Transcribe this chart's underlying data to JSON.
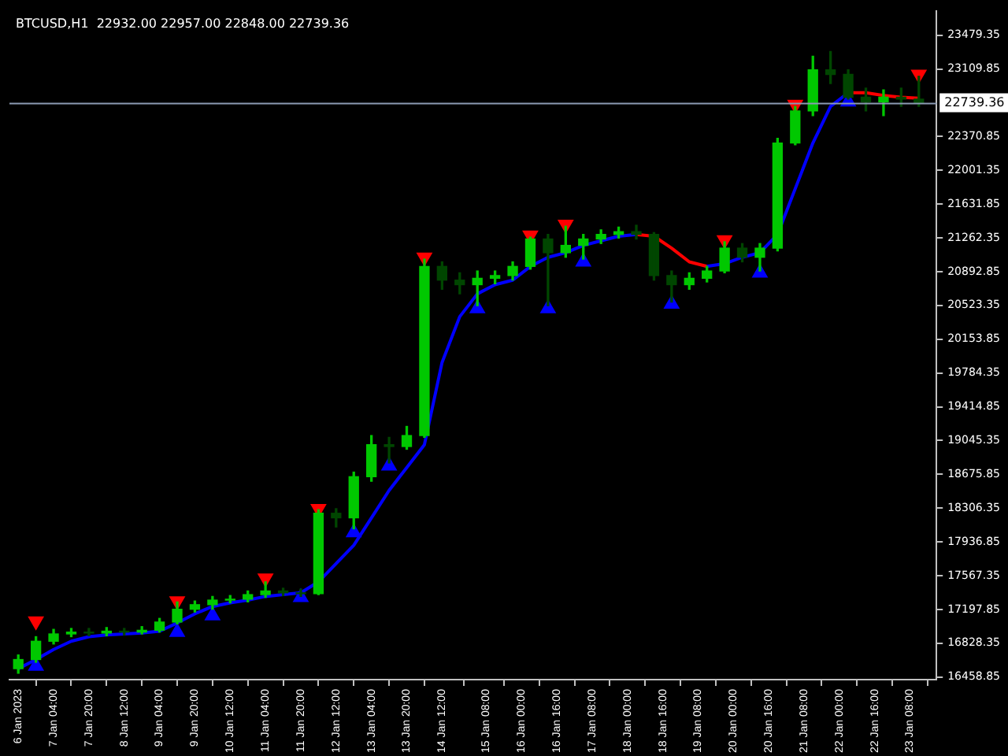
{
  "chart_data": {
    "type": "candlestick",
    "title": "BTCUSD,H1  22932.00 22957.00 22848.00 22739.36",
    "colors": [
      "#00c800",
      "#00c800",
      "#00c800",
      "#00c800",
      "#004600",
      "#00c800",
      "#004600",
      "#00c800",
      "#00c800",
      "#00c800",
      "#00c800",
      "#00c800",
      "#00c800",
      "#00c800",
      "#00c800",
      "#004600",
      "#004600",
      "#00c800",
      "#004600",
      "#00c800",
      "#00c800",
      "#004600",
      "#00c800",
      "#00c800",
      "#004600",
      "#004600",
      "#00c800",
      "#00c800",
      "#00c800",
      "#00c800",
      "#004600",
      "#00c800",
      "#00c800",
      "#00c800",
      "#00c800",
      "#004600",
      "#004600",
      "#004600",
      "#00c800",
      "#00c800",
      "#00c800",
      "#004600",
      "#00c800",
      "#00c800",
      "#00c800",
      "#00c800",
      "#004600",
      "#004600",
      "#004600",
      "#00c800",
      "#004600",
      "#004600"
    ],
    "x": [
      "2023-01-06T12:00",
      "2023-01-06T20:00",
      "2023-01-07T04:00",
      "2023-01-07T12:00",
      "2023-01-07T20:00",
      "2023-01-08T04:00",
      "2023-01-08T12:00",
      "2023-01-08T20:00",
      "2023-01-09T04:00",
      "2023-01-09T12:00",
      "2023-01-09T20:00",
      "2023-01-10T04:00",
      "2023-01-10T12:00",
      "2023-01-10T20:00",
      "2023-01-11T04:00",
      "2023-01-11T12:00",
      "2023-01-11T20:00",
      "2023-01-12T04:00",
      "2023-01-12T12:00",
      "2023-01-12T20:00",
      "2023-01-13T04:00",
      "2023-01-13T12:00",
      "2023-01-13T20:00",
      "2023-01-14T04:00",
      "2023-01-14T12:00",
      "2023-01-14T20:00",
      "2023-01-15T04:00",
      "2023-01-15T12:00",
      "2023-01-15T20:00",
      "2023-01-16T04:00",
      "2023-01-16T12:00",
      "2023-01-16T20:00",
      "2023-01-17T04:00",
      "2023-01-17T12:00",
      "2023-01-17T20:00",
      "2023-01-18T04:00",
      "2023-01-18T12:00",
      "2023-01-18T20:00",
      "2023-01-19T04:00",
      "2023-01-19T12:00",
      "2023-01-19T20:00",
      "2023-01-20T04:00",
      "2023-01-20T12:00",
      "2023-01-20T20:00",
      "2023-01-21T04:00",
      "2023-01-21T12:00",
      "2023-01-21T20:00",
      "2023-01-22T04:00",
      "2023-01-22T12:00",
      "2023-01-22T20:00",
      "2023-01-23T04:00",
      "2023-01-23T12:00"
    ],
    "ohlc": [
      [
        16550,
        16700,
        16500,
        16650
      ],
      [
        16650,
        16900,
        16620,
        16850
      ],
      [
        16850,
        16980,
        16820,
        16930
      ],
      [
        16930,
        16990,
        16900,
        16950
      ],
      [
        16950,
        16990,
        16910,
        16940
      ],
      [
        16940,
        17000,
        16910,
        16960
      ],
      [
        16960,
        16990,
        16920,
        16950
      ],
      [
        16950,
        17010,
        16930,
        16970
      ],
      [
        16970,
        17100,
        16950,
        17060
      ],
      [
        17060,
        17280,
        17040,
        17200
      ],
      [
        17200,
        17290,
        17170,
        17250
      ],
      [
        17250,
        17340,
        17200,
        17300
      ],
      [
        17300,
        17350,
        17270,
        17310
      ],
      [
        17310,
        17400,
        17280,
        17360
      ],
      [
        17360,
        17500,
        17330,
        17400
      ],
      [
        17400,
        17430,
        17350,
        17380
      ],
      [
        17380,
        17420,
        17340,
        17370
      ],
      [
        17370,
        18290,
        17360,
        18250
      ],
      [
        18250,
        18300,
        18100,
        18200
      ],
      [
        18200,
        18700,
        18080,
        18650
      ],
      [
        18650,
        19100,
        18600,
        19000
      ],
      [
        19000,
        19080,
        18800,
        18980
      ],
      [
        18980,
        19200,
        18950,
        19100
      ],
      [
        19100,
        21030,
        19080,
        20950
      ],
      [
        20950,
        21000,
        20700,
        20800
      ],
      [
        20800,
        20880,
        20650,
        20750
      ],
      [
        20750,
        20900,
        20520,
        20820
      ],
      [
        20820,
        20900,
        20760,
        20850
      ],
      [
        20850,
        21000,
        20800,
        20950
      ],
      [
        20950,
        21270,
        20920,
        21250
      ],
      [
        21250,
        21300,
        20520,
        21100
      ],
      [
        21100,
        21390,
        21050,
        21180
      ],
      [
        21180,
        21300,
        21030,
        21250
      ],
      [
        21250,
        21350,
        21200,
        21300
      ],
      [
        21300,
        21380,
        21260,
        21330
      ],
      [
        21330,
        21400,
        21250,
        21300
      ],
      [
        21300,
        21320,
        20800,
        20850
      ],
      [
        20850,
        20900,
        20560,
        20750
      ],
      [
        20750,
        20880,
        20700,
        20820
      ],
      [
        20820,
        20950,
        20780,
        20900
      ],
      [
        20900,
        21220,
        20880,
        21150
      ],
      [
        21150,
        21200,
        21000,
        21050
      ],
      [
        21050,
        21200,
        20900,
        21150
      ],
      [
        21150,
        22350,
        21120,
        22300
      ],
      [
        22300,
        22700,
        22280,
        22650
      ],
      [
        22650,
        23250,
        22600,
        23100
      ],
      [
        23100,
        23300,
        22950,
        23050
      ],
      [
        23050,
        23100,
        22780,
        22800
      ],
      [
        22800,
        22900,
        22650,
        22750
      ],
      [
        22750,
        22880,
        22600,
        22800
      ],
      [
        22800,
        22900,
        22700,
        22780
      ],
      [
        22780,
        23030,
        22700,
        22740
      ]
    ],
    "series": [
      {
        "type": "line",
        "color": "#0000ff",
        "values": [
          16550,
          16650,
          16760,
          16850,
          16900,
          16920,
          16930,
          16940,
          16960,
          17050,
          17150,
          17230,
          17270,
          17300,
          17340,
          17360,
          17380,
          17500,
          17700,
          17900,
          18200,
          18500,
          18750,
          19000,
          19900,
          20400,
          20650,
          20750,
          20800,
          20950,
          21050,
          21100,
          21180,
          21230,
          21280,
          21300,
          null,
          null,
          null,
          20950,
          20980,
          21050,
          21100,
          21300,
          21800,
          22300,
          22700,
          22850,
          null,
          null,
          null,
          null
        ]
      },
      {
        "type": "line",
        "color": "#ff0000",
        "values": [
          null,
          null,
          null,
          null,
          null,
          null,
          null,
          null,
          null,
          null,
          null,
          null,
          null,
          null,
          null,
          null,
          null,
          null,
          null,
          null,
          null,
          null,
          null,
          null,
          null,
          null,
          null,
          null,
          null,
          null,
          null,
          null,
          null,
          null,
          null,
          21300,
          21280,
          21150,
          21000,
          20950,
          null,
          null,
          null,
          null,
          null,
          null,
          null,
          22850,
          22850,
          22820,
          22800,
          22790
        ]
      },
      {
        "type": "scatter",
        "color": "#0000ff",
        "marker": "triangle",
        "x": [
          "2023-01-06T20:00",
          "2023-01-09T12:00",
          "2023-01-10T04:00",
          "2023-01-11T20:00",
          "2023-01-12T20:00",
          "2023-01-13T12:00",
          "2023-01-15T04:00",
          "2023-01-16T12:00",
          "2023-01-17T04:00",
          "2023-01-18T20:00",
          "2023-01-20T12:00",
          "2023-01-22T04:00"
        ],
        "values": [
          16580,
          16950,
          17130,
          17330,
          18040,
          18770,
          20490,
          20490,
          21000,
          20540,
          20880,
          22750
        ]
      },
      {
        "type": "scatter",
        "color": "#ff0000",
        "marker": "triangle",
        "x": [
          "2023-01-06T20:00",
          "2023-01-09T12:00",
          "2023-01-11T04:00",
          "2023-01-12T04:00",
          "2023-01-14T04:00",
          "2023-01-16T04:00",
          "2023-01-16T20:00",
          "2023-01-19T20:00",
          "2023-01-21T04:00",
          "2023-01-23T12:00"
        ],
        "values": [
          17070,
          17290,
          17540,
          18300,
          21050,
          21290,
          21410,
          21240,
          22720,
          23050
        ]
      }
    ],
    "xlim": [
      "2023-01-06T08:00",
      "2023-01-23T20:00"
    ],
    "xticks": [
      {
        "value": "2023-01-06T12:00",
        "label": "6 Jan 2023"
      },
      {
        "value": "2023-01-07T04:00",
        "label": "7 Jan 04:00"
      },
      {
        "value": "2023-01-07T20:00",
        "label": "7 Jan 20:00"
      },
      {
        "value": "2023-01-08T12:00",
        "label": "8 Jan 12:00"
      },
      {
        "value": "2023-01-09T04:00",
        "label": "9 Jan 04:00"
      },
      {
        "value": "2023-01-09T20:00",
        "label": "9 Jan 20:00"
      },
      {
        "value": "2023-01-10T12:00",
        "label": "10 Jan 12:00"
      },
      {
        "value": "2023-01-11T04:00",
        "label": "11 Jan 04:00"
      },
      {
        "value": "2023-01-11T20:00",
        "label": "11 Jan 20:00"
      },
      {
        "value": "2023-01-12T12:00",
        "label": "12 Jan 12:00"
      },
      {
        "value": "2023-01-13T04:00",
        "label": "13 Jan 04:00"
      },
      {
        "value": "2023-01-13T20:00",
        "label": "13 Jan 20:00"
      },
      {
        "value": "2023-01-14T12:00",
        "label": "14 Jan 12:00"
      },
      {
        "value": "2023-01-15T08:00",
        "label": "15 Jan 08:00"
      },
      {
        "value": "2023-01-16T00:00",
        "label": "16 Jan 00:00"
      },
      {
        "value": "2023-01-16T16:00",
        "label": "16 Jan 16:00"
      },
      {
        "value": "2023-01-17T08:00",
        "label": "17 Jan 08:00"
      },
      {
        "value": "2023-01-18T00:00",
        "label": "18 Jan 00:00"
      },
      {
        "value": "2023-01-18T16:00",
        "label": "18 Jan 16:00"
      },
      {
        "value": "2023-01-19T08:00",
        "label": "19 Jan 08:00"
      },
      {
        "value": "2023-01-20T00:00",
        "label": "20 Jan 00:00"
      },
      {
        "value": "2023-01-20T16:00",
        "label": "20 Jan 16:00"
      },
      {
        "value": "2023-01-21T08:00",
        "label": "21 Jan 08:00"
      },
      {
        "value": "2023-01-22T00:00",
        "label": "22 Jan 00:00"
      },
      {
        "value": "2023-01-22T16:00",
        "label": "22 Jan 16:00"
      },
      {
        "value": "2023-01-23T08:00",
        "label": "23 Jan 08:00"
      }
    ],
    "ylim": [
      16430,
      23740
    ],
    "yticks": [
      16458.85,
      16828.35,
      17197.85,
      17567.35,
      17936.85,
      18306.35,
      18675.85,
      19045.35,
      19414.85,
      19784.35,
      20153.85,
      20523.35,
      20892.85,
      21262.35,
      21631.85,
      22001.35,
      22370.85,
      23109.85,
      23479.35
    ],
    "ref_lines": [
      {
        "axis": "y",
        "value": 22739.36,
        "label": "22739.36",
        "color": "#8c9bb4"
      }
    ],
    "grid": false,
    "legend": false
  }
}
